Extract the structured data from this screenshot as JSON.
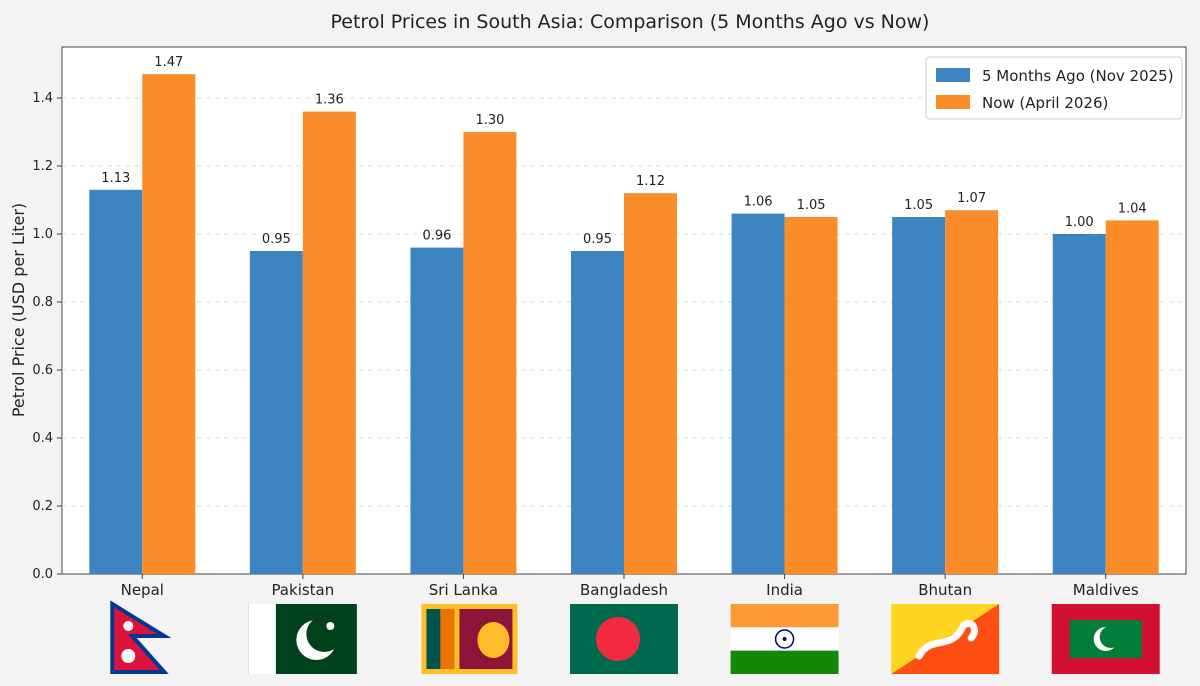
{
  "chart_data": {
    "type": "bar",
    "title": "Petrol Prices in South Asia: Comparison (5 Months Ago vs Now)",
    "xlabel": "",
    "ylabel": "Petrol Price (USD per Liter)",
    "ylim": [
      0,
      1.55
    ],
    "yticks": [
      "0.0",
      "0.2",
      "0.4",
      "0.6",
      "0.8",
      "1.0",
      "1.2",
      "1.4"
    ],
    "grid": "horizontal dashed",
    "legend": "top-right",
    "categories": [
      "Nepal",
      "Pakistan",
      "Sri Lanka",
      "Bangladesh",
      "India",
      "Bhutan",
      "Maldives"
    ],
    "series": [
      {
        "name": "5 Months Ago (Nov 2025)",
        "color": "#3d85c0",
        "values": [
          1.13,
          0.95,
          0.96,
          0.95,
          1.06,
          1.05,
          1.0
        ],
        "labels": [
          "1.13",
          "0.95",
          "0.96",
          "0.95",
          "1.06",
          "1.05",
          "1.00"
        ]
      },
      {
        "name": "Now (April 2026)",
        "color": "#fb8c2a",
        "values": [
          1.47,
          1.36,
          1.3,
          1.12,
          1.05,
          1.07,
          1.04
        ],
        "labels": [
          "1.47",
          "1.36",
          "1.30",
          "1.12",
          "1.05",
          "1.07",
          "1.04"
        ]
      }
    ],
    "flags": [
      "nepal-flag-icon",
      "pakistan-flag-icon",
      "sri-lanka-flag-icon",
      "bangladesh-flag-icon",
      "india-flag-icon",
      "bhutan-flag-icon",
      "maldives-flag-icon"
    ]
  }
}
